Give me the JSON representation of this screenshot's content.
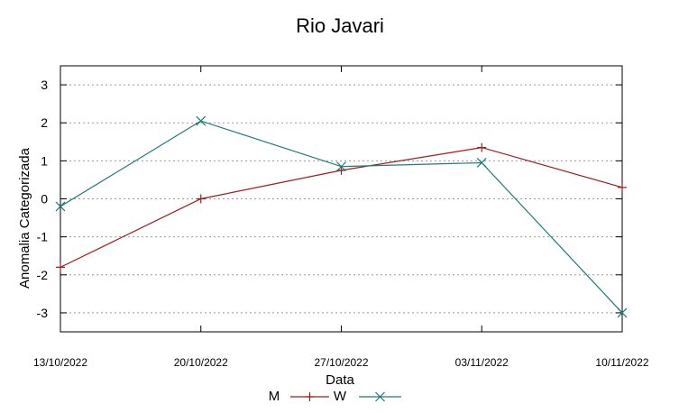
{
  "chart_data": {
    "type": "line",
    "title": "Rio Javari",
    "xlabel": "Data",
    "ylabel": "Anomalia Categorizada",
    "categories": [
      "13/10/2022",
      "20/10/2022",
      "27/10/2022",
      "03/11/2022",
      "10/11/2022"
    ],
    "ylim": [
      -3.5,
      3.5
    ],
    "yticks": [
      "3",
      "2",
      "1",
      "0",
      "-1",
      "-2",
      "-3"
    ],
    "ytick_values": [
      3,
      2,
      1,
      0,
      -1,
      -2,
      -3
    ],
    "grid": "horizontal dashed",
    "legend_position": "bottom-center",
    "series": [
      {
        "name": "M",
        "color": "#9b1c1c",
        "marker": "plus",
        "values": [
          -1.8,
          0.0,
          0.75,
          1.35,
          0.3
        ]
      },
      {
        "name": "W",
        "color": "#1f7a7a",
        "marker": "cross",
        "values": [
          -0.2,
          2.05,
          0.85,
          0.95,
          -3.0
        ]
      }
    ]
  }
}
